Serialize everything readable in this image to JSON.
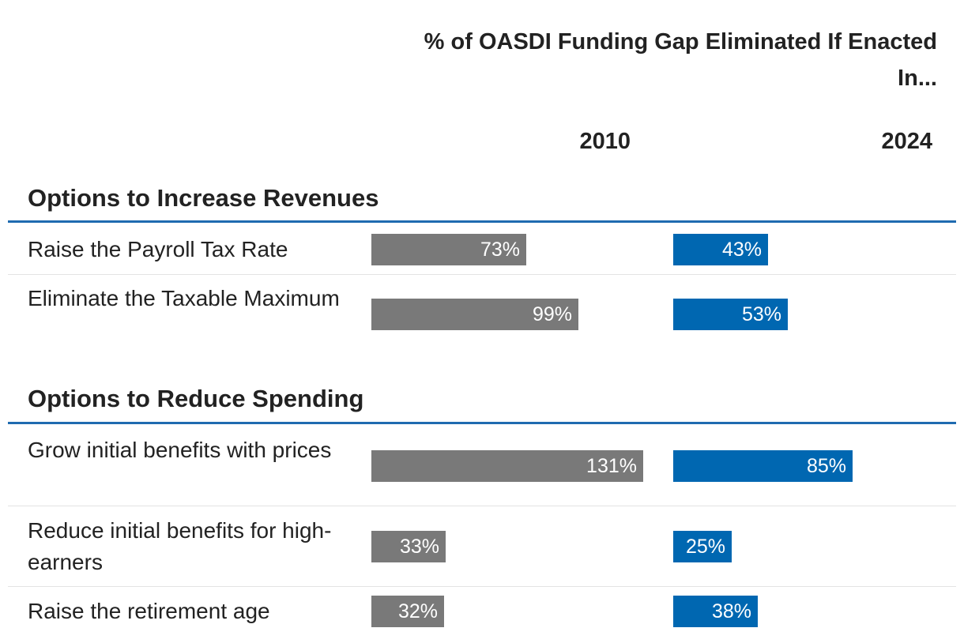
{
  "chart_data": {
    "type": "bar",
    "orientation": "horizontal",
    "title": "% of OASDI Funding Gap Eliminated If Enacted In...",
    "columns": [
      "2010",
      "2024"
    ],
    "colors": {
      "2010": "#797979",
      "2024": "#0067b1",
      "rule": "#1f6bb0"
    },
    "max_value": 131,
    "groups": [
      {
        "title": "Options to Increase Revenues",
        "rows": [
          {
            "label": "Raise the Payroll Tax Rate",
            "v2010": 73,
            "v2024": 43,
            "l2010": "73%",
            "l2024": "43%"
          },
          {
            "label": "Eliminate the Taxable Maximum",
            "v2010": 99,
            "v2024": 53,
            "l2010": "99%",
            "l2024": "53%"
          }
        ]
      },
      {
        "title": "Options to Reduce Spending",
        "rows": [
          {
            "label": "Grow initial benefits with prices",
            "v2010": 131,
            "v2024": 85,
            "l2010": "131%",
            "l2024": "85%"
          },
          {
            "label": "Reduce initial benefits for high-earners",
            "v2010": 33,
            "v2024": 25,
            "l2010": "33%",
            "l2024": "25%"
          },
          {
            "label": "Raise the retirement age",
            "v2010": 32,
            "v2024": 38,
            "l2010": "32%",
            "l2024": "38%"
          }
        ]
      }
    ]
  }
}
